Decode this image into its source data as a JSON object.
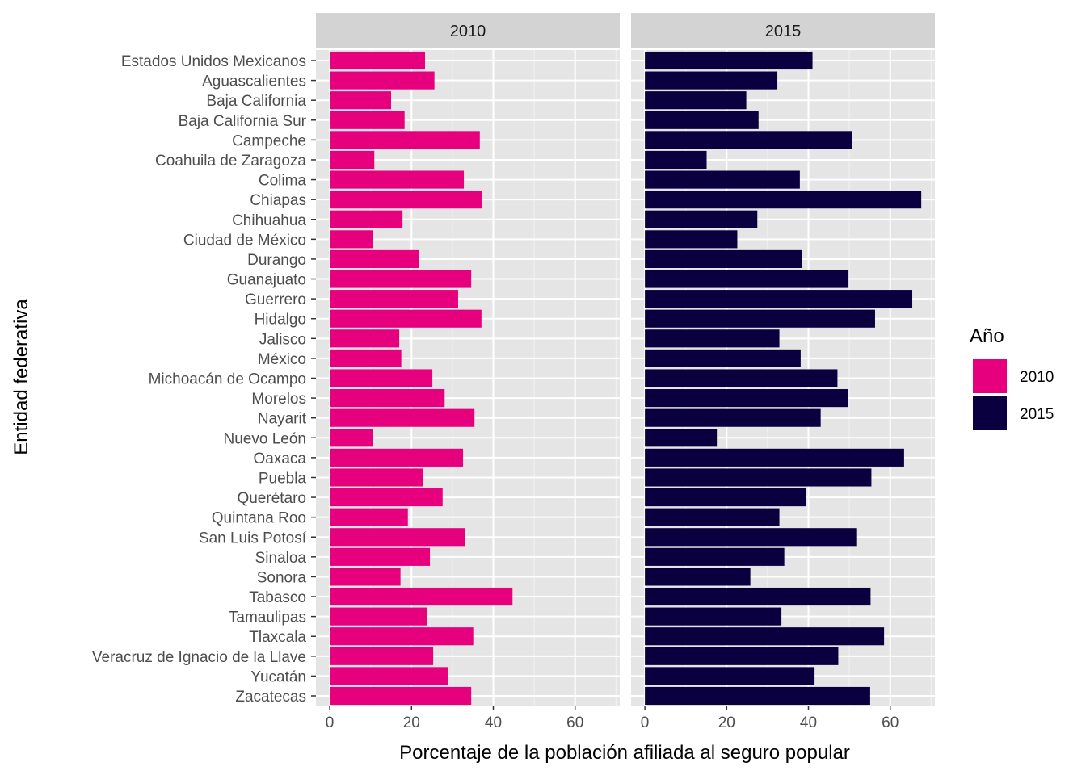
{
  "chart_data": {
    "type": "bar",
    "orientation": "horizontal",
    "xlabel": "Porcentaje de la población afiliada al seguro popular",
    "ylabel": "Entidad federativa",
    "xlim": [
      0,
      70
    ],
    "xticks": [
      0,
      20,
      40,
      60
    ],
    "grid": true,
    "legend": {
      "title": "Año",
      "position": "right"
    },
    "categories": [
      "Estados Unidos Mexicanos",
      "Aguascalientes",
      "Baja California",
      "Baja California Sur",
      "Campeche",
      "Coahuila de Zaragoza",
      "Colima",
      "Chiapas",
      "Chihuahua",
      "Ciudad de México",
      "Durango",
      "Guanajuato",
      "Guerrero",
      "Hidalgo",
      "Jalisco",
      "México",
      "Michoacán de Ocampo",
      "Morelos",
      "Nayarit",
      "Nuevo León",
      "Oaxaca",
      "Puebla",
      "Querétaro",
      "Quintana Roo",
      "San Luis Potosí",
      "Sinaloa",
      "Sonora",
      "Tabasco",
      "Tamaulipas",
      "Tlaxcala",
      "Veracruz de Ignacio de la Llave",
      "Yucatán",
      "Zacatecas"
    ],
    "series": [
      {
        "name": "2010",
        "color": "#e6007e",
        "values": [
          23.3,
          25.6,
          15.0,
          18.3,
          36.7,
          10.9,
          32.8,
          37.3,
          17.8,
          10.6,
          21.9,
          34.6,
          31.4,
          37.1,
          17.0,
          17.5,
          25.1,
          28.1,
          35.4,
          10.6,
          32.6,
          22.8,
          27.6,
          19.1,
          33.1,
          24.5,
          17.3,
          44.7,
          23.7,
          35.1,
          25.3,
          28.9,
          34.6
        ]
      },
      {
        "name": "2015",
        "color": "#0a0040",
        "values": [
          41.0,
          32.4,
          24.8,
          27.8,
          50.6,
          15.1,
          37.9,
          67.6,
          27.5,
          22.6,
          38.5,
          49.8,
          65.4,
          56.3,
          32.9,
          38.1,
          47.1,
          49.7,
          43.0,
          17.6,
          63.4,
          55.4,
          39.4,
          32.9,
          51.7,
          34.1,
          25.8,
          55.2,
          33.4,
          58.5,
          47.3,
          41.5,
          55.1
        ]
      }
    ],
    "panels": [
      "2010",
      "2015"
    ]
  }
}
